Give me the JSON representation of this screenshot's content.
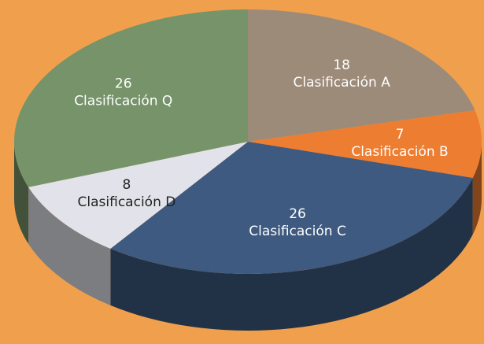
{
  "chart_data": {
    "type": "pie",
    "categories": [
      "Clasificación A",
      "Clasificación B",
      "Clasificación C",
      "Clasificación D",
      "Clasificación Q"
    ],
    "values": [
      18,
      7,
      26,
      8,
      26
    ],
    "colors": [
      "#9d8b79",
      "#ed7d31",
      "#3e5a80",
      "#e2e3ea",
      "#76936a"
    ],
    "label_colors": [
      "#ffffff",
      "#ffffff",
      "#ffffff",
      "#222222",
      "#ffffff"
    ]
  }
}
